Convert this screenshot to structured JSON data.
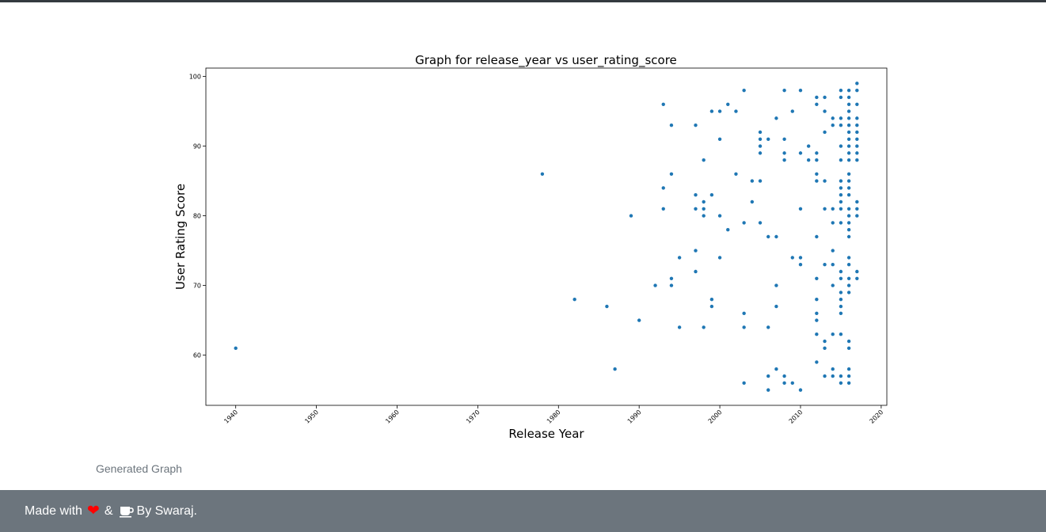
{
  "caption": "Generated Graph",
  "footer": {
    "made_with": "Made with",
    "ampersand": "&",
    "by": "By Swaraj.",
    "heart_color": "#ff0000",
    "icons": [
      "heart-icon",
      "coffee-icon"
    ]
  },
  "chart_data": {
    "type": "scatter",
    "title": "Graph for release_year vs user_rating_score",
    "xlabel": "Release Year",
    "ylabel": "User Rating Score",
    "xlim": [
      1936.3,
      2020.7
    ],
    "ylim": [
      52.8,
      101.2
    ],
    "xticks": [
      1940,
      1950,
      1960,
      1970,
      1980,
      1990,
      2000,
      2010,
      2020
    ],
    "yticks": [
      60,
      70,
      80,
      90,
      100
    ],
    "marker_color": "#1f77b4",
    "grid": false,
    "points": [
      [
        1940,
        61
      ],
      [
        1978,
        86
      ],
      [
        1982,
        68
      ],
      [
        1986,
        67
      ],
      [
        1987,
        58
      ],
      [
        1989,
        80
      ],
      [
        1990,
        65
      ],
      [
        1992,
        70
      ],
      [
        1993,
        96
      ],
      [
        1993,
        84
      ],
      [
        1993,
        81
      ],
      [
        1994,
        93
      ],
      [
        1994,
        86
      ],
      [
        1994,
        71
      ],
      [
        1994,
        70
      ],
      [
        1995,
        74
      ],
      [
        1995,
        64
      ],
      [
        1997,
        93
      ],
      [
        1997,
        83
      ],
      [
        1997,
        81
      ],
      [
        1997,
        75
      ],
      [
        1997,
        72
      ],
      [
        1998,
        88
      ],
      [
        1998,
        82
      ],
      [
        1998,
        81
      ],
      [
        1998,
        80
      ],
      [
        1998,
        64
      ],
      [
        1999,
        95
      ],
      [
        1999,
        83
      ],
      [
        1999,
        68
      ],
      [
        1999,
        67
      ],
      [
        2000,
        95
      ],
      [
        2000,
        91
      ],
      [
        2000,
        80
      ],
      [
        2000,
        74
      ],
      [
        2001,
        96
      ],
      [
        2001,
        78
      ],
      [
        2002,
        95
      ],
      [
        2002,
        86
      ],
      [
        2003,
        98
      ],
      [
        2003,
        79
      ],
      [
        2003,
        66
      ],
      [
        2003,
        64
      ],
      [
        2003,
        56
      ],
      [
        2004,
        85
      ],
      [
        2004,
        82
      ],
      [
        2005,
        92
      ],
      [
        2005,
        91
      ],
      [
        2005,
        90
      ],
      [
        2005,
        89
      ],
      [
        2005,
        85
      ],
      [
        2005,
        79
      ],
      [
        2006,
        91
      ],
      [
        2006,
        77
      ],
      [
        2006,
        64
      ],
      [
        2006,
        57
      ],
      [
        2006,
        55
      ],
      [
        2007,
        94
      ],
      [
        2007,
        77
      ],
      [
        2007,
        70
      ],
      [
        2007,
        67
      ],
      [
        2007,
        58
      ],
      [
        2008,
        98
      ],
      [
        2008,
        91
      ],
      [
        2008,
        89
      ],
      [
        2008,
        88
      ],
      [
        2008,
        57
      ],
      [
        2008,
        56
      ],
      [
        2009,
        95
      ],
      [
        2009,
        74
      ],
      [
        2009,
        56
      ],
      [
        2010,
        98
      ],
      [
        2010,
        89
      ],
      [
        2010,
        81
      ],
      [
        2010,
        74
      ],
      [
        2010,
        73
      ],
      [
        2010,
        55
      ],
      [
        2011,
        90
      ],
      [
        2011,
        88
      ],
      [
        2012,
        97
      ],
      [
        2012,
        96
      ],
      [
        2012,
        89
      ],
      [
        2012,
        88
      ],
      [
        2012,
        86
      ],
      [
        2012,
        85
      ],
      [
        2012,
        77
      ],
      [
        2012,
        71
      ],
      [
        2012,
        68
      ],
      [
        2012,
        66
      ],
      [
        2012,
        65
      ],
      [
        2012,
        63
      ],
      [
        2012,
        59
      ],
      [
        2013,
        97
      ],
      [
        2013,
        95
      ],
      [
        2013,
        92
      ],
      [
        2013,
        85
      ],
      [
        2013,
        81
      ],
      [
        2013,
        73
      ],
      [
        2013,
        62
      ],
      [
        2013,
        61
      ],
      [
        2013,
        57
      ],
      [
        2014,
        94
      ],
      [
        2014,
        93
      ],
      [
        2014,
        81
      ],
      [
        2014,
        79
      ],
      [
        2014,
        75
      ],
      [
        2014,
        73
      ],
      [
        2014,
        70
      ],
      [
        2014,
        63
      ],
      [
        2014,
        58
      ],
      [
        2014,
        57
      ],
      [
        2015,
        98
      ],
      [
        2015,
        97
      ],
      [
        2015,
        94
      ],
      [
        2015,
        93
      ],
      [
        2015,
        90
      ],
      [
        2015,
        88
      ],
      [
        2015,
        85
      ],
      [
        2015,
        84
      ],
      [
        2015,
        83
      ],
      [
        2015,
        82
      ],
      [
        2015,
        81
      ],
      [
        2015,
        79
      ],
      [
        2015,
        72
      ],
      [
        2015,
        71
      ],
      [
        2015,
        69
      ],
      [
        2015,
        68
      ],
      [
        2015,
        67
      ],
      [
        2015,
        66
      ],
      [
        2015,
        63
      ],
      [
        2015,
        57
      ],
      [
        2015,
        56
      ],
      [
        2016,
        98
      ],
      [
        2016,
        97
      ],
      [
        2016,
        96
      ],
      [
        2016,
        95
      ],
      [
        2016,
        94
      ],
      [
        2016,
        93
      ],
      [
        2016,
        92
      ],
      [
        2016,
        91
      ],
      [
        2016,
        90
      ],
      [
        2016,
        89
      ],
      [
        2016,
        88
      ],
      [
        2016,
        86
      ],
      [
        2016,
        85
      ],
      [
        2016,
        84
      ],
      [
        2016,
        83
      ],
      [
        2016,
        81
      ],
      [
        2016,
        80
      ],
      [
        2016,
        79
      ],
      [
        2016,
        78
      ],
      [
        2016,
        77
      ],
      [
        2016,
        74
      ],
      [
        2016,
        73
      ],
      [
        2016,
        71
      ],
      [
        2016,
        70
      ],
      [
        2016,
        69
      ],
      [
        2016,
        62
      ],
      [
        2016,
        61
      ],
      [
        2016,
        58
      ],
      [
        2016,
        57
      ],
      [
        2016,
        56
      ],
      [
        2017,
        99
      ],
      [
        2017,
        98
      ],
      [
        2017,
        96
      ],
      [
        2017,
        94
      ],
      [
        2017,
        93
      ],
      [
        2017,
        92
      ],
      [
        2017,
        91
      ],
      [
        2017,
        90
      ],
      [
        2017,
        89
      ],
      [
        2017,
        88
      ],
      [
        2017,
        82
      ],
      [
        2017,
        81
      ],
      [
        2017,
        80
      ],
      [
        2017,
        72
      ],
      [
        2017,
        71
      ]
    ]
  }
}
